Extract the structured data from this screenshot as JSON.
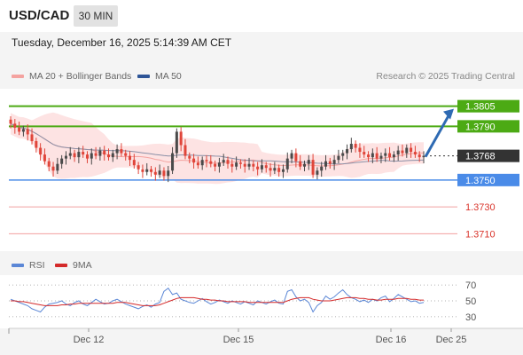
{
  "header": {
    "symbol": "USD/CAD",
    "timeframe": "30 MIN",
    "datetime": "Tuesday, December 16, 2025 5:14:39 AM CET"
  },
  "legend": {
    "ma20_bb": "MA 20 + Bollinger Bands",
    "ma50": "MA 50",
    "copyright": "Research © 2025 Trading Central",
    "rsi": "RSI",
    "rsi_ma": "9MA"
  },
  "colors": {
    "up": "#4a4a4a",
    "down": "#e0453a",
    "ma20": "#f4a3a0",
    "bollinger_fill": "#fde3e3",
    "ma50": "#8a8fa6",
    "resistance": "#4caa14",
    "current": "#333333",
    "pivot": "#4a8be8",
    "support": "#f2a0a0",
    "support_text": "#d9342b",
    "arrow": "#2e6ab3",
    "rsi": "#5b87d6",
    "rsi_ma": "#d42a2a"
  },
  "chart_data": [
    {
      "type": "candlestick",
      "ylim": [
        1.3697,
        1.3818
      ],
      "x_ticks": [
        "Dec 12",
        "Dec 15",
        "Dec 16",
        "Dec 25"
      ],
      "levels": [
        {
          "value": "1.3805",
          "kind": "resistance"
        },
        {
          "value": "1.3790",
          "kind": "resistance"
        },
        {
          "value": "1.3768",
          "kind": "current"
        },
        {
          "value": "1.3750",
          "kind": "pivot"
        },
        {
          "value": "1.3730",
          "kind": "support"
        },
        {
          "value": "1.3710",
          "kind": "support"
        }
      ],
      "closes": [
        1.3792,
        1.3789,
        1.3786,
        1.3788,
        1.3784,
        1.3779,
        1.3774,
        1.3769,
        1.3764,
        1.376,
        1.3757,
        1.3762,
        1.3766,
        1.3768,
        1.377,
        1.3767,
        1.3771,
        1.3769,
        1.3766,
        1.377,
        1.3768,
        1.3772,
        1.3769,
        1.3767,
        1.377,
        1.3773,
        1.377,
        1.3768,
        1.3765,
        1.3761,
        1.3758,
        1.3756,
        1.3758,
        1.3756,
        1.3754,
        1.3757,
        1.3753,
        1.3757,
        1.377,
        1.3786,
        1.3776,
        1.3768,
        1.3766,
        1.3763,
        1.3761,
        1.3765,
        1.3764,
        1.3762,
        1.376,
        1.3763,
        1.3765,
        1.3762,
        1.376,
        1.3763,
        1.3762,
        1.376,
        1.3762,
        1.376,
        1.3758,
        1.3761,
        1.3759,
        1.3757,
        1.3759,
        1.3756,
        1.3758,
        1.3766,
        1.377,
        1.3764,
        1.376,
        1.3762,
        1.3765,
        1.3754,
        1.3757,
        1.376,
        1.3764,
        1.3762,
        1.3765,
        1.3768,
        1.377,
        1.3773,
        1.3777,
        1.3774,
        1.3771,
        1.3769,
        1.3767,
        1.377,
        1.3766,
        1.3768,
        1.377,
        1.3767,
        1.3769,
        1.3772,
        1.377,
        1.3774,
        1.3771,
        1.3769,
        1.3767,
        1.3768
      ],
      "rsi": {
        "ylim": [
          22,
          78
        ],
        "y_ticks": [
          "70",
          "50",
          "30"
        ],
        "values": [
          52,
          50,
          48,
          46,
          44,
          40,
          38,
          36,
          42,
          46,
          47,
          48,
          50,
          46,
          44,
          48,
          50,
          46,
          44,
          48,
          52,
          49,
          46,
          47,
          50,
          52,
          49,
          46,
          44,
          42,
          40,
          43,
          45,
          42,
          46,
          48,
          62,
          66,
          58,
          60,
          52,
          50,
          48,
          47,
          50,
          53,
          49,
          46,
          48,
          51,
          49,
          47,
          50,
          48,
          46,
          49,
          47,
          45,
          50,
          48,
          46,
          49,
          51,
          47,
          46,
          62,
          64,
          55,
          50,
          52,
          48,
          36,
          44,
          48,
          56,
          52,
          55,
          60,
          64,
          58,
          54,
          52,
          49,
          51,
          48,
          52,
          50,
          54,
          56,
          49,
          53,
          58,
          55,
          52,
          49,
          50,
          47,
          48
        ],
        "ma9": [
          50,
          50,
          49,
          49,
          48,
          47,
          46,
          45,
          44,
          44,
          44,
          44,
          45,
          45,
          46,
          46,
          47,
          47,
          47,
          47,
          47,
          47,
          47,
          47,
          47,
          48,
          48,
          48,
          47,
          46,
          45,
          44,
          44,
          44,
          44,
          45,
          47,
          49,
          51,
          53,
          54,
          54,
          54,
          54,
          53,
          52,
          52,
          51,
          51,
          50,
          50,
          49,
          49,
          49,
          49,
          49,
          48,
          48,
          48,
          48,
          48,
          48,
          48,
          48,
          48,
          50,
          52,
          53,
          54,
          54,
          54,
          52,
          51,
          50,
          50,
          50,
          51,
          52,
          53,
          54,
          54,
          54,
          53,
          53,
          52,
          52,
          51,
          51,
          52,
          52,
          52,
          53,
          53,
          53,
          52,
          52,
          51,
          51
        ]
      }
    }
  ]
}
